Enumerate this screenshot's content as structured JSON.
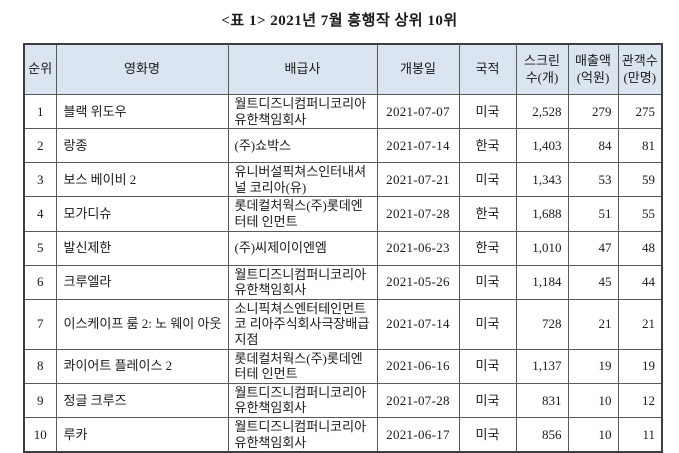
{
  "title": "<표 1> 2021년 7월 흥행작 상위 10위",
  "colors": {
    "header_bg": "#dbe5f1",
    "border": "#3f3f3f",
    "text": "#1a1a1a"
  },
  "table": {
    "columns": [
      {
        "key": "rank",
        "label": "순위"
      },
      {
        "key": "title",
        "label": "영화명"
      },
      {
        "key": "distributor",
        "label": "배급사"
      },
      {
        "key": "release_date",
        "label": "개봉일"
      },
      {
        "key": "country",
        "label": "국적"
      },
      {
        "key": "screens",
        "label": "스크린\n수(개)"
      },
      {
        "key": "revenue",
        "label": "매출액\n(억원)"
      },
      {
        "key": "audience",
        "label": "관객수\n(만명)"
      }
    ],
    "rows": [
      {
        "rank": "1",
        "title": "블랙 위도우",
        "distributor": "월트디즈니컴퍼니코리아 유한책임회사",
        "release_date": "2021-07-07",
        "country": "미국",
        "screens": "2,528",
        "revenue": "279",
        "audience": "275"
      },
      {
        "rank": "2",
        "title": "랑종",
        "distributor": "(주)쇼박스",
        "release_date": "2021-07-14",
        "country": "한국",
        "screens": "1,403",
        "revenue": "84",
        "audience": "81"
      },
      {
        "rank": "3",
        "title": "보스 베이비 2",
        "distributor": "유니버설픽쳐스인터내셔널 코리아(유)",
        "release_date": "2021-07-21",
        "country": "미국",
        "screens": "1,343",
        "revenue": "53",
        "audience": "59"
      },
      {
        "rank": "4",
        "title": "모가디슈",
        "distributor": "롯데컬처웍스(주)롯데엔터테 인먼트",
        "release_date": "2021-07-28",
        "country": "한국",
        "screens": "1,688",
        "revenue": "51",
        "audience": "55"
      },
      {
        "rank": "5",
        "title": "발신제한",
        "distributor": "(주)씨제이이엔엠",
        "release_date": "2021-06-23",
        "country": "한국",
        "screens": "1,010",
        "revenue": "47",
        "audience": "48"
      },
      {
        "rank": "6",
        "title": "크루엘라",
        "distributor": "월트디즈니컴퍼니코리아 유한책임회사",
        "release_date": "2021-05-26",
        "country": "미국",
        "screens": "1,184",
        "revenue": "45",
        "audience": "44"
      },
      {
        "rank": "7",
        "title": "이스케이프 룸 2: 노 웨이 아웃",
        "distributor": "소니픽쳐스엔터테인먼트코 리아주식회사극장배급지점",
        "release_date": "2021-07-14",
        "country": "미국",
        "screens": "728",
        "revenue": "21",
        "audience": "21"
      },
      {
        "rank": "8",
        "title": "콰이어트 플레이스 2",
        "distributor": "롯데컬처웍스(주)롯데엔터테 인먼트",
        "release_date": "2021-06-16",
        "country": "미국",
        "screens": "1,137",
        "revenue": "19",
        "audience": "19"
      },
      {
        "rank": "9",
        "title": "정글 크루즈",
        "distributor": "월트디즈니컴퍼니코리아 유한책임회사",
        "release_date": "2021-07-28",
        "country": "미국",
        "screens": "831",
        "revenue": "10",
        "audience": "12"
      },
      {
        "rank": "10",
        "title": "루카",
        "distributor": "월트디즈니컴퍼니코리아 유한책임회사",
        "release_date": "2021-06-17",
        "country": "미국",
        "screens": "856",
        "revenue": "10",
        "audience": "11"
      }
    ]
  }
}
